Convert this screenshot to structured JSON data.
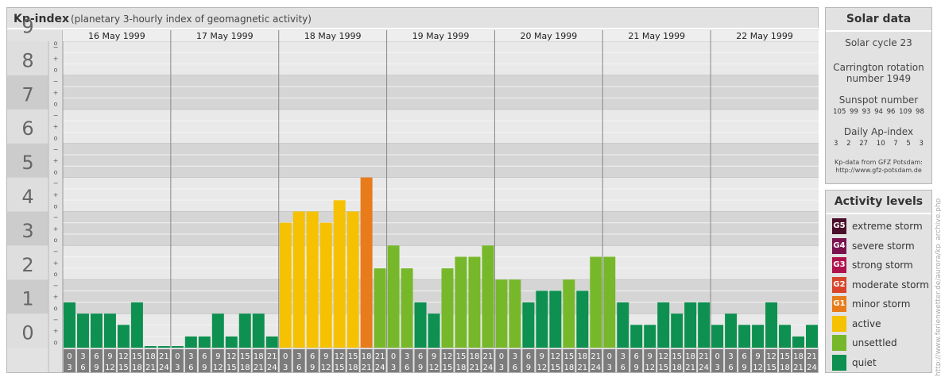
{
  "title": "Kp-index",
  "subtitle": "(planetary 3-hourly index of geomagnetic activity)",
  "chart_data": {
    "type": "bar",
    "y_levels": [
      "0",
      "1",
      "2",
      "3",
      "4",
      "5",
      "6",
      "7",
      "8",
      "9"
    ],
    "y_minor_labels": [
      "−",
      "o",
      "+"
    ],
    "ylim": [
      0,
      9
    ],
    "days": [
      "16 May 1999",
      "17 May 1999",
      "18 May 1999",
      "19 May 1999",
      "20 May 1999",
      "21 May 1999",
      "22 May 1999"
    ],
    "hour_ranges": [
      [
        "0",
        "3"
      ],
      [
        "3",
        "6"
      ],
      [
        "6",
        "9"
      ],
      [
        "9",
        "12"
      ],
      [
        "12",
        "15"
      ],
      [
        "15",
        "18"
      ],
      [
        "18",
        "21"
      ],
      [
        "21",
        "24"
      ]
    ],
    "values": [
      [
        1.33,
        1.0,
        1.0,
        1.0,
        0.67,
        1.33,
        0,
        0
      ],
      [
        0,
        0.33,
        0.33,
        1.0,
        0.33,
        1.0,
        1.0,
        0.33
      ],
      [
        3.67,
        4.0,
        4.0,
        3.67,
        4.33,
        4.0,
        5.0,
        2.33
      ],
      [
        3.0,
        2.33,
        1.33,
        1.0,
        2.33,
        2.67,
        2.67,
        3.0
      ],
      [
        2.0,
        2.0,
        1.33,
        1.67,
        1.67,
        2.0,
        1.67,
        2.67
      ],
      [
        2.67,
        1.33,
        0.67,
        0.67,
        1.33,
        1.0,
        1.33,
        1.33
      ],
      [
        0.67,
        1.0,
        0.67,
        0.67,
        1.33,
        0.67,
        0.33,
        0.67
      ]
    ],
    "color_thresholds": {
      "quiet_max": 1.67,
      "unsettled_max": 3.0,
      "active_max": 4.33,
      "minor_storm_max": 5.33
    },
    "bar_colors": {
      "quiet": "#0d9050",
      "unsettled": "#76b82a",
      "active": "#f5c100",
      "minor_storm": "#e87c1a",
      "moderate_storm": "#d8442a",
      "strong_storm": "#b0124e",
      "severe_storm": "#7a1250",
      "extreme_storm": "#4a0d2a"
    }
  },
  "solar": {
    "title": "Solar data",
    "cycle": "Solar cycle 23",
    "carrington_line1": "Carrington rotation",
    "carrington_line2": "number 1949",
    "sunspot_label": "Sunspot number",
    "sunspot_values": "105 99 93 94 96 109 98",
    "ap_label": "Daily Ap-index",
    "ap_values": "3 2 27 10 7 5 3",
    "credit_line1": "Kp-data from GFZ Potsdam:",
    "credit_line2": "http://www.gfz-potsdam.de"
  },
  "activity": {
    "title": "Activity levels",
    "levels": [
      {
        "badge": "G5",
        "label": "extreme storm",
        "color": "#4a0d2a"
      },
      {
        "badge": "G4",
        "label": "severe storm",
        "color": "#7a1250"
      },
      {
        "badge": "G3",
        "label": "strong storm",
        "color": "#b0124e"
      },
      {
        "badge": "G2",
        "label": "moderate storm",
        "color": "#d8442a"
      },
      {
        "badge": "G1",
        "label": "minor storm",
        "color": "#e87c1a"
      },
      {
        "badge": "",
        "label": "active",
        "color": "#f5c100"
      },
      {
        "badge": "",
        "label": "unsettled",
        "color": "#76b82a"
      },
      {
        "badge": "",
        "label": "quiet",
        "color": "#0d9050"
      }
    ]
  },
  "vertical_credit": "http://www.ferienwetter.de/aurora/kp_archive.php"
}
